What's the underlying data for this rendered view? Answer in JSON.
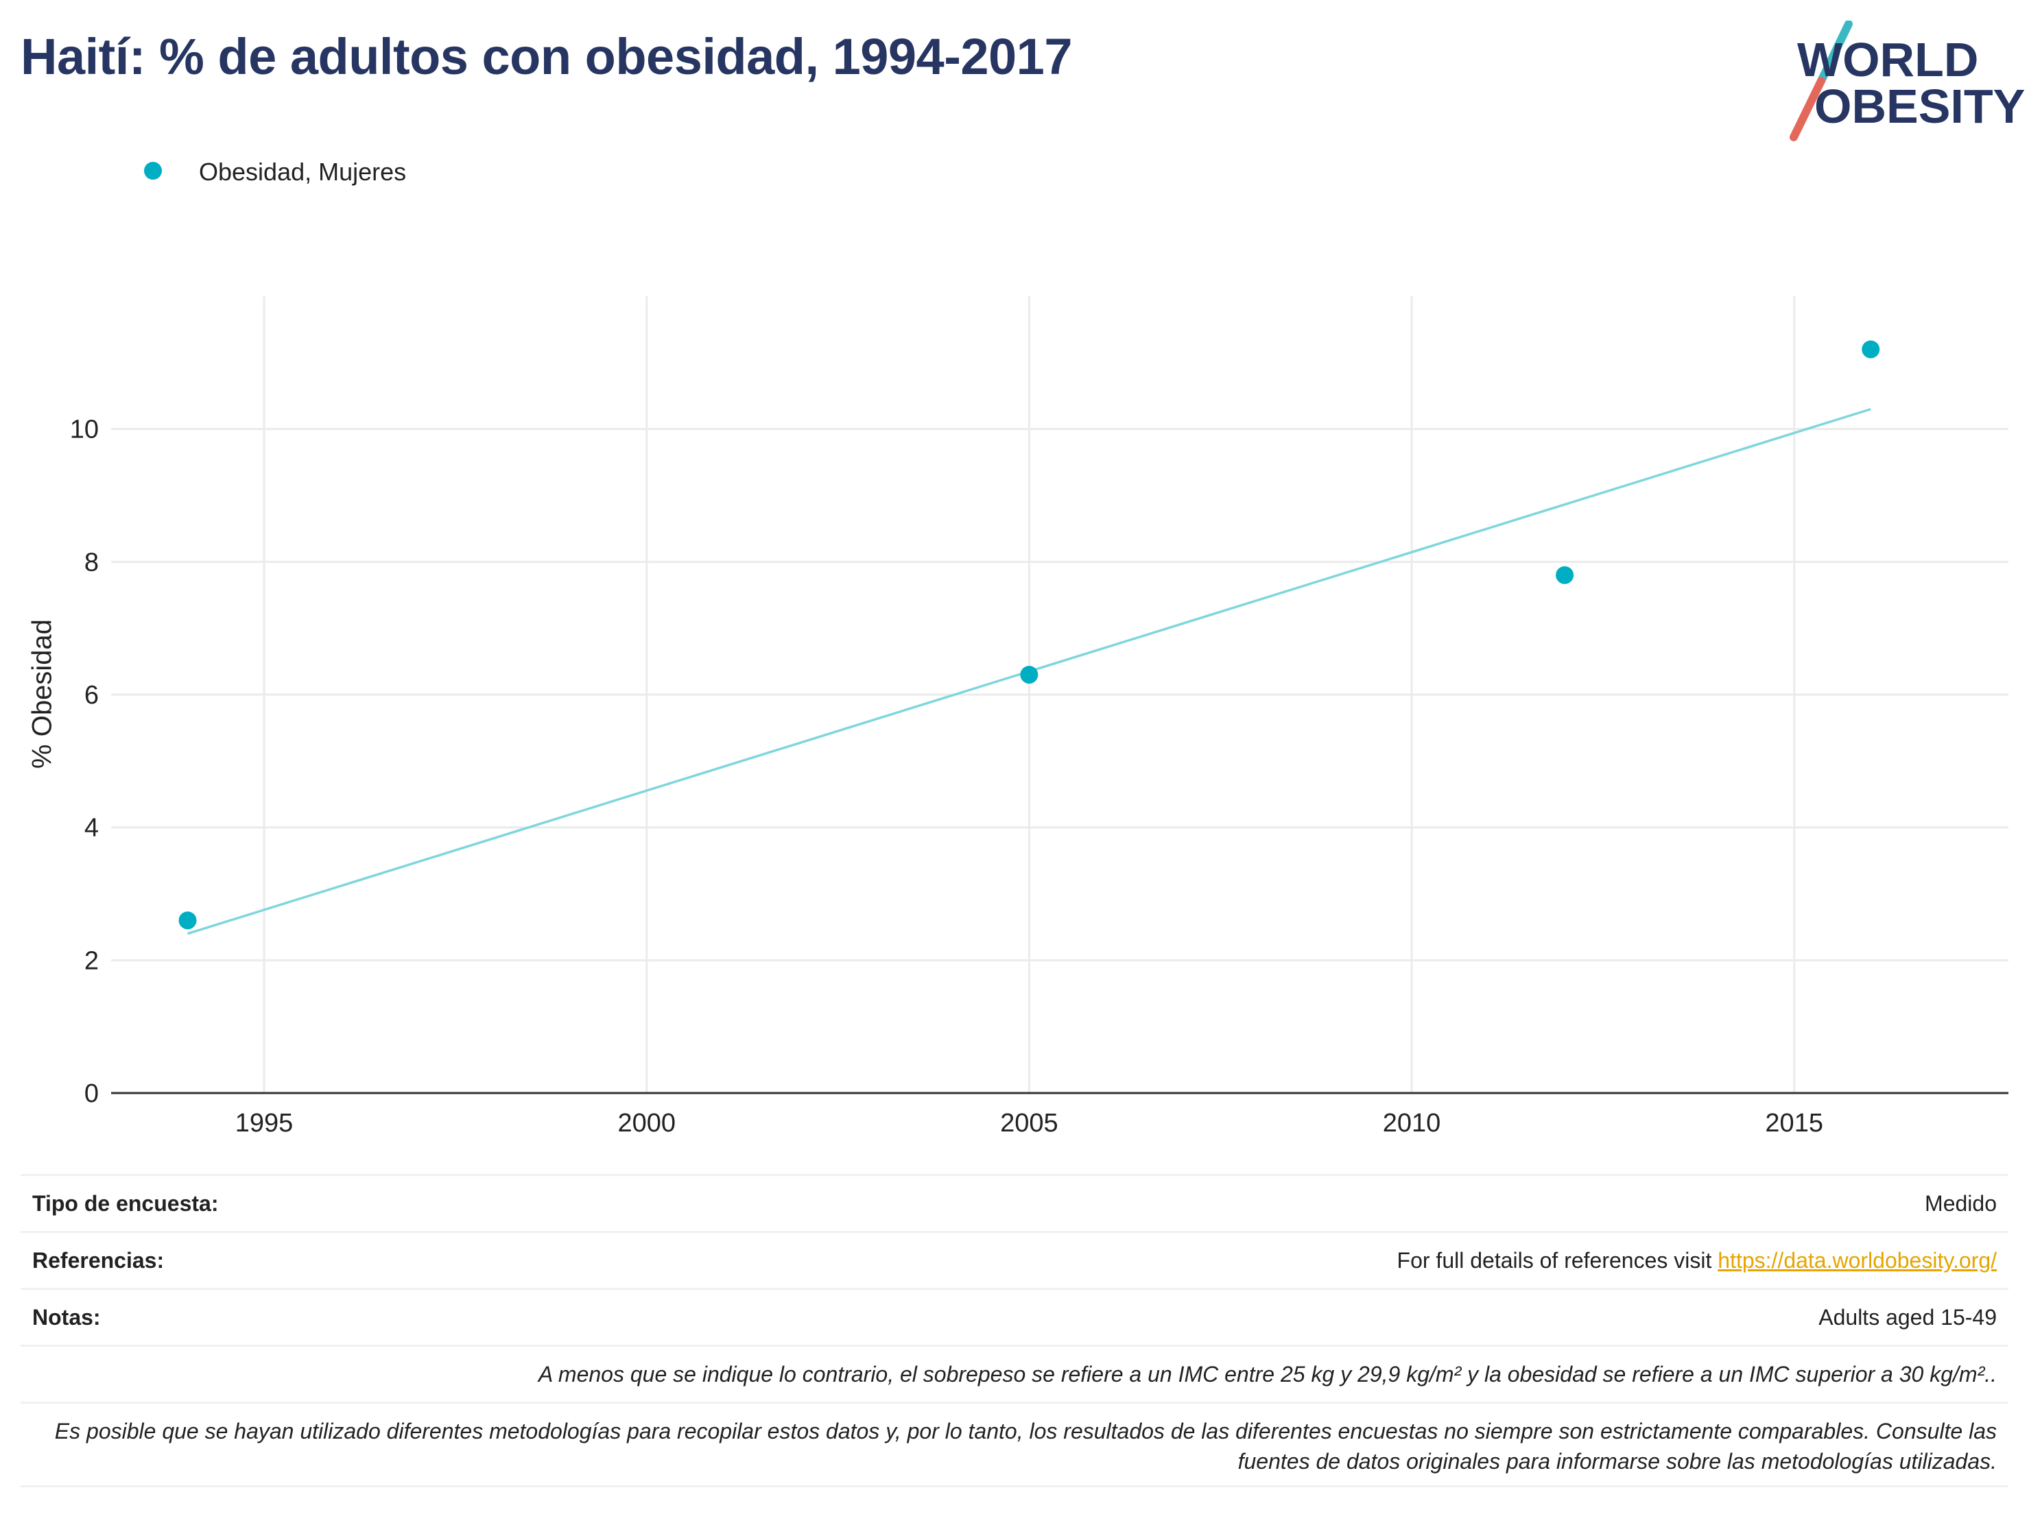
{
  "title": "Haití: % de adultos con obesidad, 1994-2017",
  "logo": {
    "line1": "WORLD",
    "line2": "OBESITY",
    "accent1": "#3bb9c2",
    "accent2": "#e4685a",
    "text_color": "#263561"
  },
  "legend": {
    "label": "Obesidad, Mujeres",
    "color": "#00aec4"
  },
  "chart_data": {
    "type": "scatter",
    "title": "Haití: % de adultos con obesidad, 1994-2017",
    "xlabel": "",
    "ylabel": "% Obesidad",
    "xlim": [
      1993,
      2017.8
    ],
    "ylim": [
      0,
      12
    ],
    "x_ticks": [
      1995,
      2000,
      2005,
      2010,
      2015
    ],
    "y_ticks": [
      0,
      2,
      4,
      6,
      8,
      10
    ],
    "grid": true,
    "legend_position": "top-left",
    "series": [
      {
        "name": "Obesidad, Mujeres",
        "color": "#00aec4",
        "points": [
          {
            "x": 1994,
            "y": 2.6
          },
          {
            "x": 2005,
            "y": 6.3
          },
          {
            "x": 2012,
            "y": 7.8
          },
          {
            "x": 2016,
            "y": 11.2
          }
        ]
      }
    ],
    "trendline": {
      "color": "#7fd6de",
      "start": {
        "x": 1994,
        "y": 2.4
      },
      "end": {
        "x": 2016,
        "y": 10.3
      }
    }
  },
  "info": {
    "survey_label": "Tipo de encuesta:",
    "survey_value": "Medido",
    "refs_label": "Referencias:",
    "refs_text": "For full details of references visit ",
    "refs_link": "https://data.worldobesity.org/",
    "notes_label": "Notas:",
    "notes_value": "Adults aged 15-49",
    "note_bmi": "A menos que se indique lo contrario, el sobrepeso se refiere a un IMC entre 25 kg y 29,9 kg/m² y la obesidad se refiere a un IMC superior a 30 kg/m²..",
    "note_methods": "Es posible que se hayan utilizado diferentes metodologías para recopilar estos datos y, por lo tanto, los resultados de las diferentes encuestas no siempre son estrictamente comparables. Consulte las fuentes de datos originales para informarse sobre las metodologías utilizadas."
  }
}
